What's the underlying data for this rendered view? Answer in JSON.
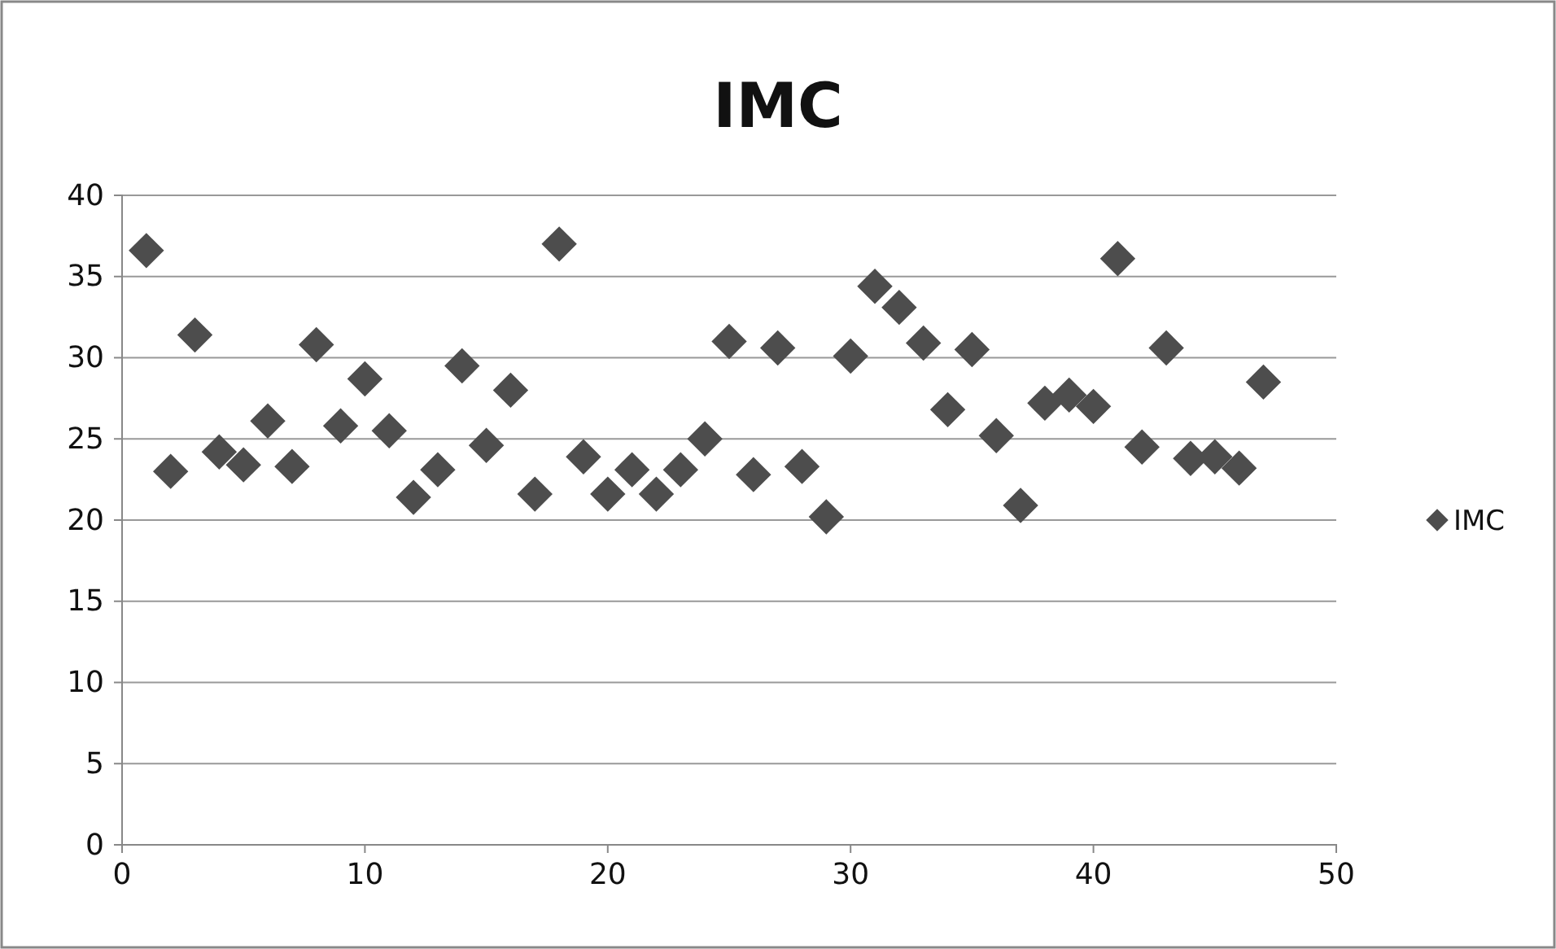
{
  "chart_data": {
    "type": "scatter",
    "title": "IMC",
    "x": [
      1,
      2,
      3,
      4,
      5,
      6,
      7,
      8,
      9,
      10,
      11,
      12,
      13,
      14,
      15,
      16,
      17,
      18,
      19,
      20,
      21,
      22,
      23,
      24,
      25,
      26,
      27,
      28,
      29,
      30,
      31,
      32,
      33,
      34,
      35,
      36,
      37,
      38,
      39,
      40,
      41,
      42,
      43,
      44,
      45,
      46,
      47
    ],
    "series": [
      {
        "name": "IMC",
        "color": "#4d4d4d",
        "values": [
          36.6,
          23.0,
          31.4,
          24.2,
          23.4,
          26.1,
          23.3,
          30.8,
          25.8,
          28.7,
          25.5,
          21.4,
          23.1,
          29.5,
          24.6,
          28.0,
          21.6,
          37.0,
          23.9,
          21.6,
          23.1,
          21.6,
          23.1,
          25.0,
          31.0,
          22.8,
          30.6,
          23.3,
          20.2,
          30.1,
          34.4,
          33.1,
          30.9,
          26.8,
          30.5,
          25.2,
          20.9,
          27.2,
          27.7,
          27.0,
          36.1,
          24.5,
          30.6,
          23.8,
          23.9,
          23.2,
          28.5
        ]
      }
    ],
    "xlim": [
      0,
      50
    ],
    "xticks": [
      0,
      10,
      20,
      30,
      40,
      50
    ],
    "ylim": [
      0,
      40
    ],
    "yticks": [
      0,
      5,
      10,
      15,
      20,
      25,
      30,
      35,
      40
    ],
    "grid": "y",
    "legend": "right",
    "marker": "diamond"
  }
}
